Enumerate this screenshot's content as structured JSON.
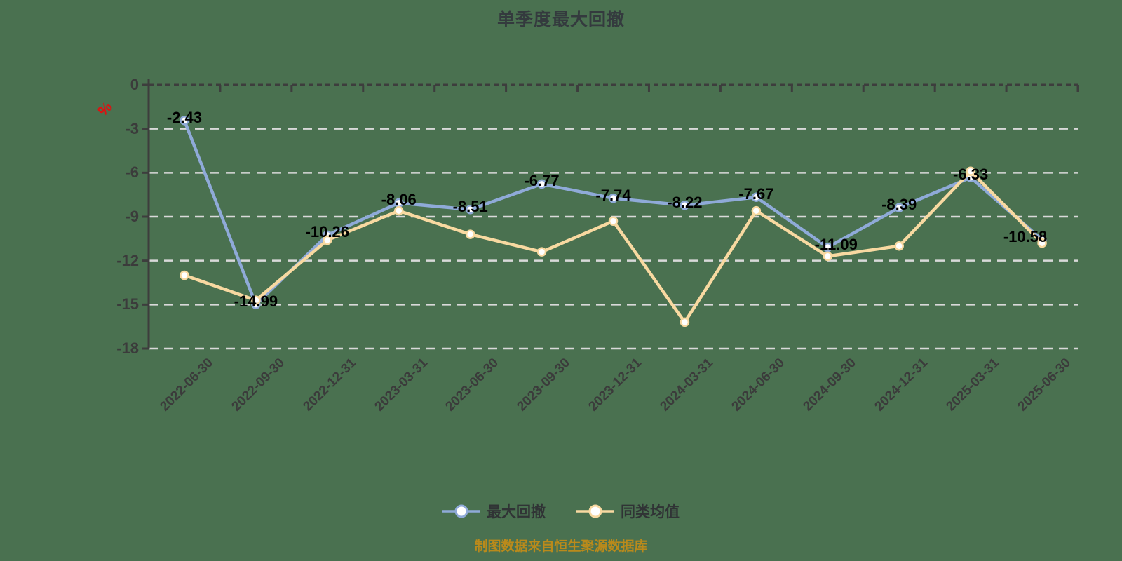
{
  "title": "单季度最大回撤",
  "y_axis": {
    "unit": "%",
    "ticks": [
      "0",
      "-3",
      "-6",
      "-9",
      "-12",
      "-15",
      "-18"
    ]
  },
  "chart_data": {
    "type": "line",
    "title": "单季度最大回撤",
    "categories": [
      "2022-06-30",
      "2022-09-30",
      "2022-12-31",
      "2023-03-31",
      "2023-06-30",
      "2023-09-30",
      "2023-12-31",
      "2024-03-31",
      "2024-06-30",
      "2024-09-30",
      "2024-12-31",
      "2025-03-31",
      "2025-06-30"
    ],
    "series": [
      {
        "name": "最大回撤",
        "color": "#8faad8",
        "values": [
          -2.43,
          -14.99,
          -10.26,
          -8.06,
          -8.51,
          -6.77,
          -7.74,
          -8.22,
          -7.67,
          -11.09,
          -8.39,
          -6.33,
          -10.58
        ],
        "labels": [
          "-2.43",
          "-14.99",
          "-10.26",
          "-8.06",
          "-8.51",
          "-6.77",
          "-7.74",
          "-8.22",
          "-7.67",
          "-11.09",
          "-8.39",
          "-6.33",
          "-10.58"
        ]
      },
      {
        "name": "同类均值",
        "color": "#f8d9a1",
        "values": [
          -13.0,
          -14.7,
          -10.6,
          -8.6,
          -10.2,
          -11.4,
          -9.3,
          -16.2,
          -8.6,
          -11.7,
          -11.0,
          -5.9,
          -10.8
        ]
      }
    ],
    "ylim": [
      -18,
      0
    ],
    "y_unit": "%",
    "grid": true,
    "gridline_style": "dashed",
    "legend_position": "bottom",
    "x_label_rotation": 45
  },
  "legend": {
    "items": [
      {
        "label": "最大回撤",
        "color": "#8faad8"
      },
      {
        "label": "同类均值",
        "color": "#f8d9a1"
      }
    ]
  },
  "footer": {
    "text": "制图数据来自恒生聚源数据库",
    "color": "#ba8a1b"
  },
  "colors": {
    "background": "#4a7150",
    "gridline": "#d9d9d9",
    "axis": "#3d3d3d",
    "tick_label": "#3b3b3b",
    "data_label": "#000000",
    "title": "#343a3e",
    "unit": "#e01010",
    "marker_fill": "#ffffff"
  }
}
